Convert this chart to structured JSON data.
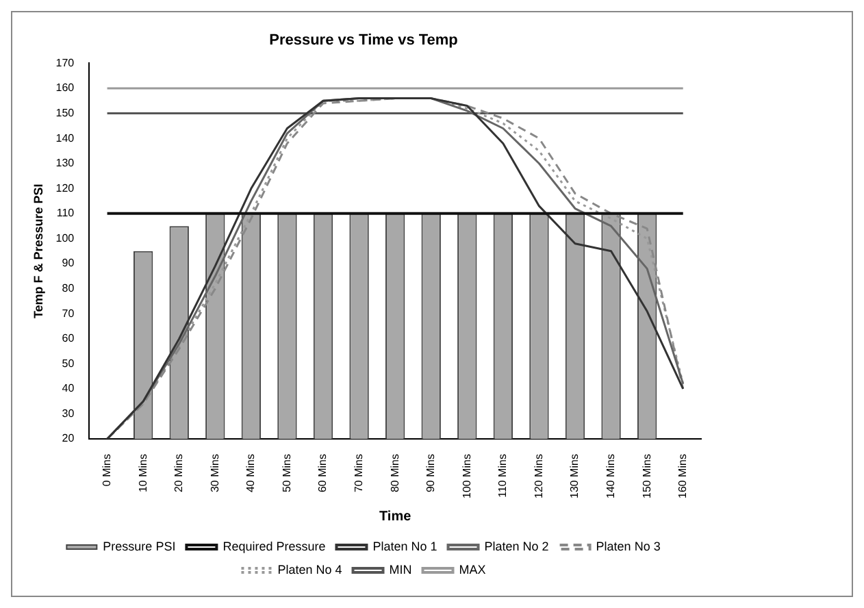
{
  "chart_data": {
    "type": "bar",
    "title": "Pressure vs Time vs Temp",
    "xlabel": "Time",
    "ylabel": "Temp F & Pressure PSI",
    "categories": [
      "0 Mins",
      "10 Mins",
      "20 Mins",
      "30 Mins",
      "40 Mins",
      "50 Mins",
      "60 Mins",
      "70 Mins",
      "80 Mins",
      "90 Mins",
      "100 Mins",
      "110 Mins",
      "120 Mins",
      "130 Mins",
      "140 Mins",
      "150 Mins",
      "160 Mins"
    ],
    "series": [
      {
        "name": "Pressure PSI",
        "color": "#a8a8a8",
        "values": [
          null,
          95,
          105,
          110,
          110,
          110,
          110,
          110,
          110,
          110,
          110,
          110,
          110,
          110,
          110,
          110,
          null
        ]
      },
      {
        "name": "Required Pressure",
        "type": "line",
        "color": "#111111",
        "line_style": "solid",
        "values": [
          110,
          110,
          110,
          110,
          110,
          110,
          110,
          110,
          110,
          110,
          110,
          110,
          110,
          110,
          110,
          110,
          110
        ]
      },
      {
        "name": "Platen No 1",
        "type": "line",
        "color": "#333333",
        "line_style": "solid",
        "values": [
          20,
          35,
          60,
          89,
          120,
          144,
          155,
          156,
          156,
          156,
          153,
          138,
          113,
          98,
          95,
          71,
          40
        ]
      },
      {
        "name": "Platen No 2",
        "type": "line",
        "color": "#666666",
        "line_style": "solid",
        "values": [
          20,
          35,
          58,
          85,
          115,
          142,
          155,
          156,
          156,
          156,
          151,
          144,
          130,
          112,
          105,
          88,
          42
        ]
      },
      {
        "name": "Platen No 3",
        "type": "line",
        "color": "#888888",
        "line_style": "dashed",
        "values": [
          20,
          34,
          56,
          80,
          108,
          138,
          154,
          155,
          156,
          156,
          153,
          148,
          140,
          118,
          110,
          104,
          40
        ]
      },
      {
        "name": "Platen No 4",
        "type": "line",
        "color": "#999999",
        "line_style": "dotted",
        "values": [
          20,
          34,
          57,
          82,
          110,
          140,
          155,
          155,
          156,
          156,
          152,
          146,
          135,
          115,
          108,
          100,
          42
        ]
      },
      {
        "name": "MIN",
        "type": "line",
        "color": "#555555",
        "line_style": "solid",
        "values": [
          150,
          150,
          150,
          150,
          150,
          150,
          150,
          150,
          150,
          150,
          150,
          150,
          150,
          150,
          150,
          150,
          150
        ]
      },
      {
        "name": "MAX",
        "type": "line",
        "color": "#9a9a9a",
        "line_style": "solid",
        "values": [
          160,
          160,
          160,
          160,
          160,
          160,
          160,
          160,
          160,
          160,
          160,
          160,
          160,
          160,
          160,
          160,
          160
        ]
      }
    ],
    "ylim": [
      20,
      170
    ],
    "yticks": [
      20,
      30,
      40,
      50,
      60,
      70,
      80,
      90,
      100,
      110,
      120,
      130,
      140,
      150,
      160,
      170
    ],
    "grid": false,
    "legend": "bottom",
    "marker": "none"
  }
}
